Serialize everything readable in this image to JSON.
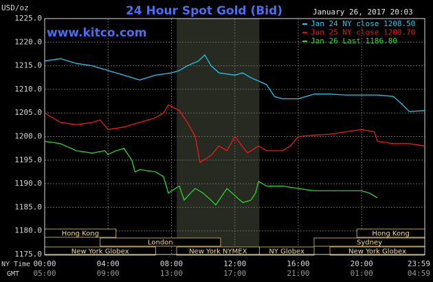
{
  "chart_data": {
    "type": "line",
    "title": "24 Hour Spot Gold (Bid)",
    "subtitle": "January 26, 2017 20:03",
    "watermark": "www.kitco.com",
    "y_label": "USD/oz",
    "x_label": "NY Time",
    "x2_label": "GMT",
    "ylim": [
      1175,
      1225
    ],
    "yticks": [
      {
        "value": 1175,
        "label": "1175.0"
      },
      {
        "value": 1180,
        "label": "1180.0"
      },
      {
        "value": 1185,
        "label": "1185.0"
      },
      {
        "value": 1190,
        "label": "1190.0"
      },
      {
        "value": 1195,
        "label": "1195.0"
      },
      {
        "value": 1200,
        "label": "1200.0"
      },
      {
        "value": 1205,
        "label": "1205.0"
      },
      {
        "value": 1210,
        "label": "1210.0"
      },
      {
        "value": 1215,
        "label": "1215.0"
      },
      {
        "value": 1220,
        "label": "1220.0"
      },
      {
        "value": 1225,
        "label": "1225.0"
      }
    ],
    "xlim": [
      0,
      23.983
    ],
    "xticks": [
      {
        "value": 0,
        "label": "00:00"
      },
      {
        "value": 4,
        "label": "04:00"
      },
      {
        "value": 8,
        "label": "08:00"
      },
      {
        "value": 12,
        "label": "12:00"
      },
      {
        "value": 16,
        "label": "16:00"
      },
      {
        "value": 20,
        "label": "20:00"
      },
      {
        "value": 23.983,
        "label": "23:59"
      }
    ],
    "x2ticks": [
      {
        "value": 0,
        "label": "05:00"
      },
      {
        "value": 4,
        "label": "09:00"
      },
      {
        "value": 8,
        "label": "13:00"
      },
      {
        "value": 12,
        "label": "17:00"
      },
      {
        "value": 16,
        "label": "21:00"
      },
      {
        "value": 20,
        "label": "01:00"
      },
      {
        "value": 23.983,
        "label": "04:59"
      }
    ],
    "grid": true,
    "shade": [
      8.33,
      13.55
    ],
    "sessions": [
      [
        {
          "label": "Hong Kong",
          "start": 0,
          "end": 4.5
        },
        {
          "label": "Hong Kong",
          "start": 19.7,
          "end": 23.983
        }
      ],
      [
        {
          "label": "London",
          "start": 3.5,
          "end": 11.1
        },
        {
          "label": "Sydney",
          "start": 17,
          "end": 23.983
        }
      ],
      [
        {
          "label": "New York Globex",
          "start": 0,
          "end": 7
        },
        {
          "label": "New York NYMEX",
          "start": 8.33,
          "end": 13.55
        },
        {
          "label": "NY Globex",
          "start": 13.55,
          "end": 17
        },
        {
          "label": "New York Globex",
          "start": 18,
          "end": 23.983
        }
      ]
    ],
    "series": [
      {
        "name": "Jan 24 NY close 1208.50",
        "color": "#22c8f0",
        "x": [
          0,
          1,
          2,
          3,
          4,
          5,
          6,
          7,
          8,
          8.5,
          9,
          9.7,
          10.1,
          10.5,
          11,
          12,
          12.5,
          13,
          14,
          14.5,
          15,
          16,
          17,
          18,
          19,
          20,
          21,
          22,
          22.5,
          23,
          23.983
        ],
        "values": [
          1216,
          1216.5,
          1215.5,
          1215,
          1214,
          1213,
          1212,
          1213,
          1213.5,
          1214,
          1215,
          1216,
          1217.3,
          1215,
          1213.5,
          1213,
          1213.5,
          1212.5,
          1211,
          1208.5,
          1208,
          1208,
          1209,
          1209,
          1208.8,
          1208.8,
          1208.8,
          1208.5,
          1207,
          1205.3,
          1205.5
        ]
      },
      {
        "name": "Jan 25 NY close 1200.70",
        "color": "#f01818",
        "x": [
          0,
          0.5,
          1,
          2,
          3,
          3.5,
          4,
          5,
          6,
          7,
          7.5,
          7.8,
          8.5,
          9,
          9.5,
          9.8,
          10.5,
          11,
          11.5,
          12,
          12.8,
          13.5,
          14,
          15,
          15.5,
          16,
          17,
          18,
          19,
          20,
          20.8,
          21,
          22,
          23,
          23.983
        ],
        "values": [
          1205,
          1204,
          1203,
          1202.5,
          1203,
          1203.5,
          1201.5,
          1202,
          1203,
          1204,
          1205,
          1206.7,
          1205.5,
          1203,
          1200,
          1194.5,
          1196,
          1198,
          1197,
          1200,
          1196.5,
          1198,
          1197,
          1197,
          1198,
          1200,
          1200.3,
          1200.5,
          1201,
          1201.5,
          1201,
          1199,
          1198.5,
          1198.5,
          1198
        ]
      },
      {
        "name": "Jan 26 Last 1186.80",
        "color": "#28d828",
        "x": [
          0,
          1,
          2,
          3,
          3.8,
          4,
          4.5,
          5,
          5.5,
          5.7,
          6,
          7,
          7.5,
          7.8,
          8,
          8.5,
          8.8,
          9.2,
          9.5,
          10,
          10.5,
          10.8,
          11.2,
          11.5,
          12,
          12.5,
          13,
          13.3,
          13.5,
          14,
          15,
          16,
          17,
          18,
          19,
          20,
          20.5,
          21
        ],
        "values": [
          1199,
          1198.5,
          1197,
          1196.5,
          1197,
          1196.2,
          1197,
          1197.5,
          1195,
          1192.5,
          1193,
          1192.5,
          1191.5,
          1188,
          1188.5,
          1189.5,
          1186.5,
          1188,
          1189,
          1188,
          1186.5,
          1185.5,
          1187.5,
          1189,
          1187.5,
          1186,
          1186.5,
          1188,
          1190.5,
          1189.5,
          1189.5,
          1189,
          1188.5,
          1188.5,
          1188.5,
          1188.5,
          1188,
          1187
        ]
      }
    ]
  }
}
